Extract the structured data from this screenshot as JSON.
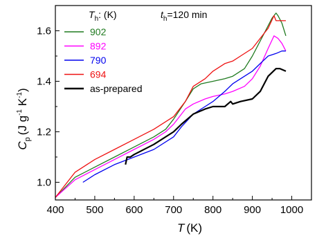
{
  "chart_data": {
    "type": "line",
    "xlabel": {
      "symbol": "T",
      "unit": "(K)"
    },
    "ylabel": {
      "symbol": "C",
      "subscript": "p",
      "unit_open": "(J g",
      "exp1": "-1",
      "unit_mid": " K",
      "exp2": "-1",
      "unit_close": ")"
    },
    "xlim": [
      400,
      1050
    ],
    "ylim": [
      0.93,
      1.7
    ],
    "x_ticks": [
      "400",
      "500",
      "600",
      "700",
      "800",
      "900",
      "1000"
    ],
    "x_tick_values": [
      400,
      500,
      600,
      700,
      800,
      900,
      1000
    ],
    "y_ticks": [
      "1.0",
      "1.2",
      "1.4",
      "1.6"
    ],
    "y_tick_values": [
      1.0,
      1.2,
      1.4,
      1.6
    ],
    "legend_header": {
      "th_symbol": "T",
      "th_sub": "h",
      "th_unit": ": (K)",
      "t_symbol": "t",
      "t_sub": "h",
      "t_value": "=120 min"
    },
    "legend_placement": "top-left",
    "series": [
      {
        "name": "902",
        "color": "#1f7a1f",
        "x": [
          400,
          450,
          500,
          550,
          600,
          650,
          680,
          700,
          730,
          750,
          770,
          800,
          830,
          850,
          880,
          900,
          920,
          940,
          950,
          960,
          965,
          975,
          985
        ],
        "y": [
          0.94,
          1.02,
          1.06,
          1.1,
          1.14,
          1.18,
          1.21,
          1.25,
          1.32,
          1.37,
          1.39,
          1.4,
          1.41,
          1.42,
          1.45,
          1.5,
          1.56,
          1.62,
          1.65,
          1.67,
          1.66,
          1.63,
          1.58
        ]
      },
      {
        "name": "892",
        "color": "#ff00ff",
        "x": [
          400,
          450,
          500,
          550,
          600,
          650,
          680,
          700,
          730,
          750,
          780,
          800,
          830,
          850,
          880,
          900,
          920,
          940,
          955,
          965,
          975,
          985
        ],
        "y": [
          0.94,
          1.01,
          1.05,
          1.09,
          1.13,
          1.17,
          1.2,
          1.23,
          1.29,
          1.31,
          1.33,
          1.34,
          1.35,
          1.36,
          1.38,
          1.41,
          1.46,
          1.53,
          1.58,
          1.57,
          1.55,
          1.52
        ]
      },
      {
        "name": "790",
        "color": "#0000ee",
        "x": [
          470,
          500,
          550,
          600,
          650,
          700,
          720,
          750,
          780,
          800,
          830,
          850,
          880,
          900,
          920,
          940,
          960,
          975,
          985
        ],
        "y": [
          1.0,
          1.03,
          1.07,
          1.1,
          1.13,
          1.18,
          1.22,
          1.27,
          1.3,
          1.32,
          1.36,
          1.39,
          1.42,
          1.44,
          1.47,
          1.5,
          1.51,
          1.52,
          1.52
        ]
      },
      {
        "name": "694",
        "color": "#ee1111",
        "x": [
          400,
          450,
          500,
          550,
          600,
          650,
          700,
          730,
          750,
          780,
          800,
          830,
          850,
          870,
          900,
          920,
          940,
          955,
          960,
          970,
          985
        ],
        "y": [
          0.94,
          1.04,
          1.09,
          1.13,
          1.17,
          1.21,
          1.26,
          1.32,
          1.38,
          1.41,
          1.44,
          1.47,
          1.48,
          1.5,
          1.53,
          1.57,
          1.61,
          1.66,
          1.64,
          1.64,
          1.64
        ]
      },
      {
        "name": "as-prepared",
        "color": "#000000",
        "thick": true,
        "x": [
          578,
          582,
          590,
          600,
          650,
          700,
          720,
          750,
          780,
          800,
          830,
          845,
          850,
          870,
          900,
          920,
          940,
          960,
          970,
          985
        ],
        "y": [
          1.07,
          1.1,
          1.1,
          1.11,
          1.15,
          1.2,
          1.23,
          1.27,
          1.29,
          1.3,
          1.3,
          1.32,
          1.31,
          1.32,
          1.33,
          1.36,
          1.42,
          1.45,
          1.45,
          1.44
        ]
      }
    ]
  }
}
